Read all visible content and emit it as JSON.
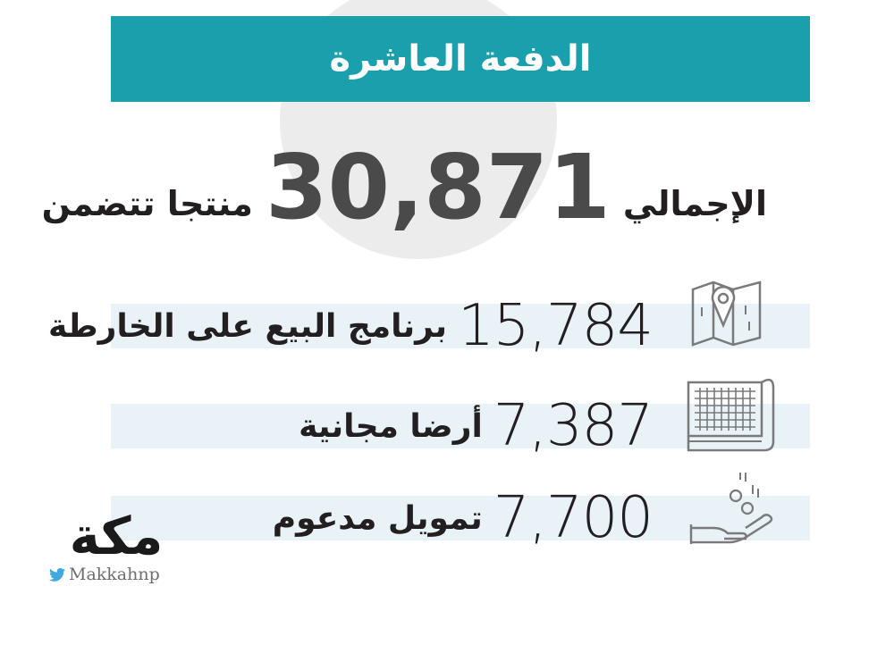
{
  "header": {
    "title": "الدفعة العاشرة"
  },
  "total": {
    "label": "الإجمالي",
    "number": "30,871",
    "suffix": "منتجا تتضمن"
  },
  "rows": [
    {
      "value": "15,784",
      "label": "برنامج البيع على الخارطة",
      "icon": "map-pin-icon"
    },
    {
      "value": "7,387",
      "label": "أرضا مجانية",
      "icon": "land-plan-icon"
    },
    {
      "value": "7,700",
      "label": "تمويل مدعوم",
      "icon": "hand-coins-icon"
    }
  ],
  "logo": {
    "mark": "مكة",
    "handle": "Makkahnp",
    "icon": "twitter-icon"
  },
  "colors": {
    "header_bg": "#1aa0ad",
    "row_bg": "#e9f2f7",
    "circle": "#ececec",
    "text": "#231f20"
  }
}
